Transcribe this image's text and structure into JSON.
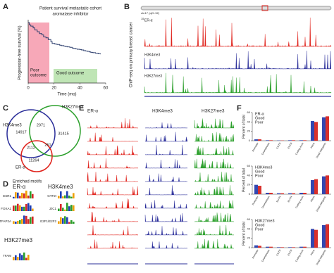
{
  "panel_a": {
    "label": "A",
    "title": [
      "Patient survival metastatic cohort",
      "aromatase inhibitor"
    ],
    "y_label": "Progression-free survival (%)",
    "x_label": "Time (mo)",
    "xlim": [
      0,
      60
    ],
    "xticks": [
      0,
      20,
      40,
      60
    ],
    "poor_outcome": [
      "Poor",
      "outcome"
    ],
    "good_outcome": "Good outcome"
  },
  "panel_b": {
    "label": "B",
    "locus": "chr17 (q21.32)",
    "y_label": "ChIP-seq on primary breast cancer",
    "tracks": [
      "ER-α",
      "H3K4me3",
      "H3K27me3"
    ],
    "er_scale": "15"
  },
  "panel_c": {
    "label": "C",
    "sets": [
      "H3K4me3",
      "H3K27me3",
      "ER-α"
    ],
    "counts": [
      14917,
      2071,
      31415,
      2112,
      261,
      11264
    ]
  },
  "panel_d": {
    "label": "D",
    "title": "Enriched motifs",
    "groups": [
      {
        "name": "ER-α",
        "motifs": [
          "ESR1",
          "FOXA1",
          "TFAP2A"
        ]
      },
      {
        "name": "H3K4me3",
        "motifs": [
          "GTF2I",
          "ZIC1",
          "E2F1/E2F2"
        ]
      },
      {
        "name": "H3K27me3",
        "motifs": [
          "TFAM"
        ]
      }
    ]
  },
  "panel_e": {
    "label": "E",
    "tracks": [
      "ER-α",
      "H3K4me3",
      "H3K27me3"
    ]
  },
  "panel_f": {
    "label": "F",
    "y_label": "Percent of total",
    "categories": [
      "Promoter",
      "Downstream",
      "5'UTR",
      "3'UTR",
      "Coding exon",
      "Intron",
      "Distal intergenic"
    ],
    "charts": [
      {
        "title": "ER-α",
        "ylim": [
          0,
          60
        ],
        "yticks": [
          0,
          20,
          40,
          60
        ],
        "series": [
          {
            "name": "Good",
            "color": "#3347b0",
            "values": [
              3,
              1,
              0.5,
              1,
              1,
              42,
              50
            ]
          },
          {
            "name": "Poor",
            "color": "#d9302b",
            "values": [
              3,
              1,
              0.5,
              1,
              1,
              40,
              52
            ]
          }
        ]
      },
      {
        "title": "H3K4me3",
        "ylim": [
          0,
          60
        ],
        "yticks": [
          0,
          20,
          40,
          60
        ],
        "series": [
          {
            "name": "Good",
            "color": "#3347b0",
            "values": [
              20,
              3,
              2,
              2,
              3,
              30,
              38
            ]
          },
          {
            "name": "Poor",
            "color": "#d9302b",
            "values": [
              18,
              3,
              2,
              2,
              3,
              32,
              40
            ]
          }
        ]
      },
      {
        "title": "H3K27me3",
        "ylim": [
          0,
          60
        ],
        "yticks": [
          0,
          20,
          40,
          60
        ],
        "series": [
          {
            "name": "Good",
            "color": "#3347b0",
            "values": [
              5,
              2,
              1,
              1,
              2,
              40,
              48
            ]
          },
          {
            "name": "Poor",
            "color": "#d9302b",
            "values": [
              4,
              2,
              1,
              1,
              2,
              38,
              50
            ]
          }
        ]
      }
    ]
  }
}
